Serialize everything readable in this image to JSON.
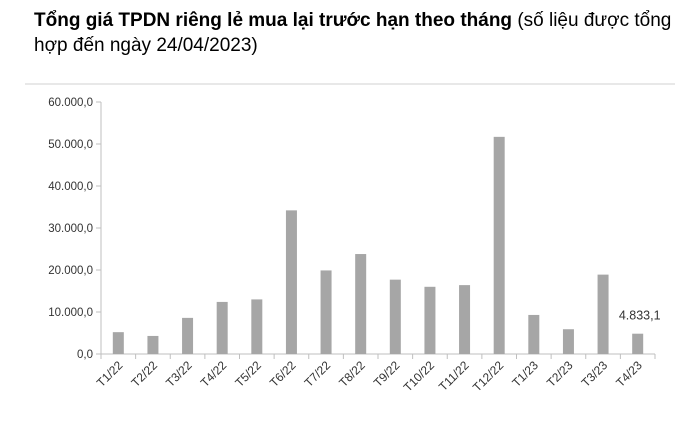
{
  "title": {
    "bold": "Tổng giá TPDN riêng lẻ mua lại trước hạn theo tháng",
    "normal": "(số liệu được tổng hợp đến ngày 24/04/2023)"
  },
  "chart_data": {
    "type": "bar",
    "categories": [
      "T1/22",
      "T2/22",
      "T3/22",
      "T4/22",
      "T5/22",
      "T6/22",
      "T7/22",
      "T8/22",
      "T9/22",
      "T10/22",
      "T11/22",
      "T12/22",
      "T1/23",
      "T2/23",
      "T3/23",
      "T4/23"
    ],
    "values": [
      5200,
      4300,
      8600,
      12400,
      13000,
      34200,
      19900,
      23800,
      17700,
      16000,
      16400,
      51700,
      9300,
      5900,
      18900,
      4833.1
    ],
    "ylim": [
      0,
      60000
    ],
    "yticks": [
      0,
      10000,
      20000,
      30000,
      40000,
      50000,
      60000
    ],
    "ytick_labels": [
      "0,0",
      "10.000,0",
      "20.000,0",
      "30.000,0",
      "40.000,0",
      "50.000,0",
      "60.000,0"
    ],
    "annotation": {
      "category": "T4/23",
      "text": "4.833,1"
    },
    "bar_color": "#a6a6a6",
    "grid": false,
    "legend": "none"
  }
}
